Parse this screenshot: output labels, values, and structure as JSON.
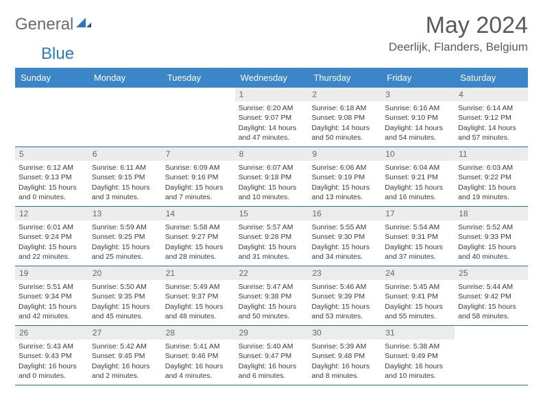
{
  "logo": {
    "part1": "General",
    "part2": "Blue"
  },
  "title": "May 2024",
  "location": "Deerlijk, Flanders, Belgium",
  "colors": {
    "header_bg": "#3b86c8",
    "header_text": "#ffffff",
    "daynum_bg": "#ececec",
    "week_border": "#2b6aa8",
    "logo_gray": "#6b6b6b",
    "logo_blue": "#2b78c4"
  },
  "day_names": [
    "Sunday",
    "Monday",
    "Tuesday",
    "Wednesday",
    "Thursday",
    "Friday",
    "Saturday"
  ],
  "weeks": [
    [
      {
        "empty": true
      },
      {
        "empty": true
      },
      {
        "empty": true
      },
      {
        "day": "1",
        "sunrise": "Sunrise: 6:20 AM",
        "sunset": "Sunset: 9:07 PM",
        "dl1": "Daylight: 14 hours",
        "dl2": "and 47 minutes."
      },
      {
        "day": "2",
        "sunrise": "Sunrise: 6:18 AM",
        "sunset": "Sunset: 9:08 PM",
        "dl1": "Daylight: 14 hours",
        "dl2": "and 50 minutes."
      },
      {
        "day": "3",
        "sunrise": "Sunrise: 6:16 AM",
        "sunset": "Sunset: 9:10 PM",
        "dl1": "Daylight: 14 hours",
        "dl2": "and 54 minutes."
      },
      {
        "day": "4",
        "sunrise": "Sunrise: 6:14 AM",
        "sunset": "Sunset: 9:12 PM",
        "dl1": "Daylight: 14 hours",
        "dl2": "and 57 minutes."
      }
    ],
    [
      {
        "day": "5",
        "sunrise": "Sunrise: 6:12 AM",
        "sunset": "Sunset: 9:13 PM",
        "dl1": "Daylight: 15 hours",
        "dl2": "and 0 minutes."
      },
      {
        "day": "6",
        "sunrise": "Sunrise: 6:11 AM",
        "sunset": "Sunset: 9:15 PM",
        "dl1": "Daylight: 15 hours",
        "dl2": "and 3 minutes."
      },
      {
        "day": "7",
        "sunrise": "Sunrise: 6:09 AM",
        "sunset": "Sunset: 9:16 PM",
        "dl1": "Daylight: 15 hours",
        "dl2": "and 7 minutes."
      },
      {
        "day": "8",
        "sunrise": "Sunrise: 6:07 AM",
        "sunset": "Sunset: 9:18 PM",
        "dl1": "Daylight: 15 hours",
        "dl2": "and 10 minutes."
      },
      {
        "day": "9",
        "sunrise": "Sunrise: 6:06 AM",
        "sunset": "Sunset: 9:19 PM",
        "dl1": "Daylight: 15 hours",
        "dl2": "and 13 minutes."
      },
      {
        "day": "10",
        "sunrise": "Sunrise: 6:04 AM",
        "sunset": "Sunset: 9:21 PM",
        "dl1": "Daylight: 15 hours",
        "dl2": "and 16 minutes."
      },
      {
        "day": "11",
        "sunrise": "Sunrise: 6:03 AM",
        "sunset": "Sunset: 9:22 PM",
        "dl1": "Daylight: 15 hours",
        "dl2": "and 19 minutes."
      }
    ],
    [
      {
        "day": "12",
        "sunrise": "Sunrise: 6:01 AM",
        "sunset": "Sunset: 9:24 PM",
        "dl1": "Daylight: 15 hours",
        "dl2": "and 22 minutes."
      },
      {
        "day": "13",
        "sunrise": "Sunrise: 5:59 AM",
        "sunset": "Sunset: 9:25 PM",
        "dl1": "Daylight: 15 hours",
        "dl2": "and 25 minutes."
      },
      {
        "day": "14",
        "sunrise": "Sunrise: 5:58 AM",
        "sunset": "Sunset: 9:27 PM",
        "dl1": "Daylight: 15 hours",
        "dl2": "and 28 minutes."
      },
      {
        "day": "15",
        "sunrise": "Sunrise: 5:57 AM",
        "sunset": "Sunset: 9:28 PM",
        "dl1": "Daylight: 15 hours",
        "dl2": "and 31 minutes."
      },
      {
        "day": "16",
        "sunrise": "Sunrise: 5:55 AM",
        "sunset": "Sunset: 9:30 PM",
        "dl1": "Daylight: 15 hours",
        "dl2": "and 34 minutes."
      },
      {
        "day": "17",
        "sunrise": "Sunrise: 5:54 AM",
        "sunset": "Sunset: 9:31 PM",
        "dl1": "Daylight: 15 hours",
        "dl2": "and 37 minutes."
      },
      {
        "day": "18",
        "sunrise": "Sunrise: 5:52 AM",
        "sunset": "Sunset: 9:33 PM",
        "dl1": "Daylight: 15 hours",
        "dl2": "and 40 minutes."
      }
    ],
    [
      {
        "day": "19",
        "sunrise": "Sunrise: 5:51 AM",
        "sunset": "Sunset: 9:34 PM",
        "dl1": "Daylight: 15 hours",
        "dl2": "and 42 minutes."
      },
      {
        "day": "20",
        "sunrise": "Sunrise: 5:50 AM",
        "sunset": "Sunset: 9:35 PM",
        "dl1": "Daylight: 15 hours",
        "dl2": "and 45 minutes."
      },
      {
        "day": "21",
        "sunrise": "Sunrise: 5:49 AM",
        "sunset": "Sunset: 9:37 PM",
        "dl1": "Daylight: 15 hours",
        "dl2": "and 48 minutes."
      },
      {
        "day": "22",
        "sunrise": "Sunrise: 5:47 AM",
        "sunset": "Sunset: 9:38 PM",
        "dl1": "Daylight: 15 hours",
        "dl2": "and 50 minutes."
      },
      {
        "day": "23",
        "sunrise": "Sunrise: 5:46 AM",
        "sunset": "Sunset: 9:39 PM",
        "dl1": "Daylight: 15 hours",
        "dl2": "and 53 minutes."
      },
      {
        "day": "24",
        "sunrise": "Sunrise: 5:45 AM",
        "sunset": "Sunset: 9:41 PM",
        "dl1": "Daylight: 15 hours",
        "dl2": "and 55 minutes."
      },
      {
        "day": "25",
        "sunrise": "Sunrise: 5:44 AM",
        "sunset": "Sunset: 9:42 PM",
        "dl1": "Daylight: 15 hours",
        "dl2": "and 58 minutes."
      }
    ],
    [
      {
        "day": "26",
        "sunrise": "Sunrise: 5:43 AM",
        "sunset": "Sunset: 9:43 PM",
        "dl1": "Daylight: 16 hours",
        "dl2": "and 0 minutes."
      },
      {
        "day": "27",
        "sunrise": "Sunrise: 5:42 AM",
        "sunset": "Sunset: 9:45 PM",
        "dl1": "Daylight: 16 hours",
        "dl2": "and 2 minutes."
      },
      {
        "day": "28",
        "sunrise": "Sunrise: 5:41 AM",
        "sunset": "Sunset: 9:46 PM",
        "dl1": "Daylight: 16 hours",
        "dl2": "and 4 minutes."
      },
      {
        "day": "29",
        "sunrise": "Sunrise: 5:40 AM",
        "sunset": "Sunset: 9:47 PM",
        "dl1": "Daylight: 16 hours",
        "dl2": "and 6 minutes."
      },
      {
        "day": "30",
        "sunrise": "Sunrise: 5:39 AM",
        "sunset": "Sunset: 9:48 PM",
        "dl1": "Daylight: 16 hours",
        "dl2": "and 8 minutes."
      },
      {
        "day": "31",
        "sunrise": "Sunrise: 5:38 AM",
        "sunset": "Sunset: 9:49 PM",
        "dl1": "Daylight: 16 hours",
        "dl2": "and 10 minutes."
      },
      {
        "empty": true
      }
    ]
  ]
}
